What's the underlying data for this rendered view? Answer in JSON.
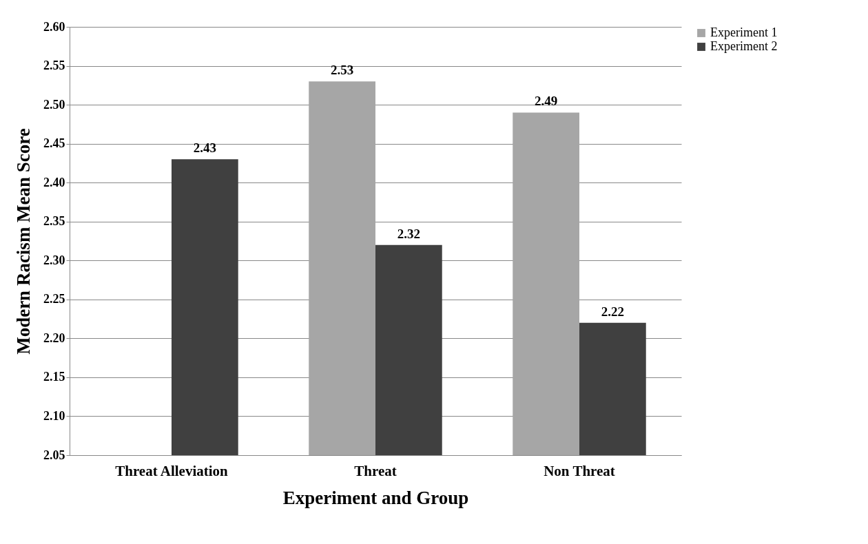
{
  "chart_data": {
    "type": "bar",
    "xlabel": "Experiment and Group",
    "ylabel": "Modern Racism Mean Score",
    "categories": [
      "Threat Alleviation",
      "Threat",
      "Non Threat"
    ],
    "series": [
      {
        "name": "Experiment 1",
        "color": "#a6a6a6",
        "values": [
          null,
          2.53,
          2.49
        ]
      },
      {
        "name": "Experiment 2",
        "color": "#404040",
        "values": [
          2.43,
          2.32,
          2.22
        ]
      }
    ],
    "ylim": [
      2.05,
      2.6
    ],
    "yticks": [
      2.05,
      {
        "value": 2.1,
        "label": "2.10"
      },
      2.15,
      {
        "value": 2.2,
        "label": "2.20"
      },
      2.25,
      {
        "value": 2.3,
        "label": "2.30"
      },
      2.35,
      {
        "value": 2.4,
        "label": "2.40"
      },
      2.45,
      {
        "value": 2.5,
        "label": "2.50"
      },
      2.55,
      {
        "value": 2.6,
        "label": "2.60"
      }
    ],
    "grid": "y",
    "legend": "right",
    "data_labels": true
  }
}
